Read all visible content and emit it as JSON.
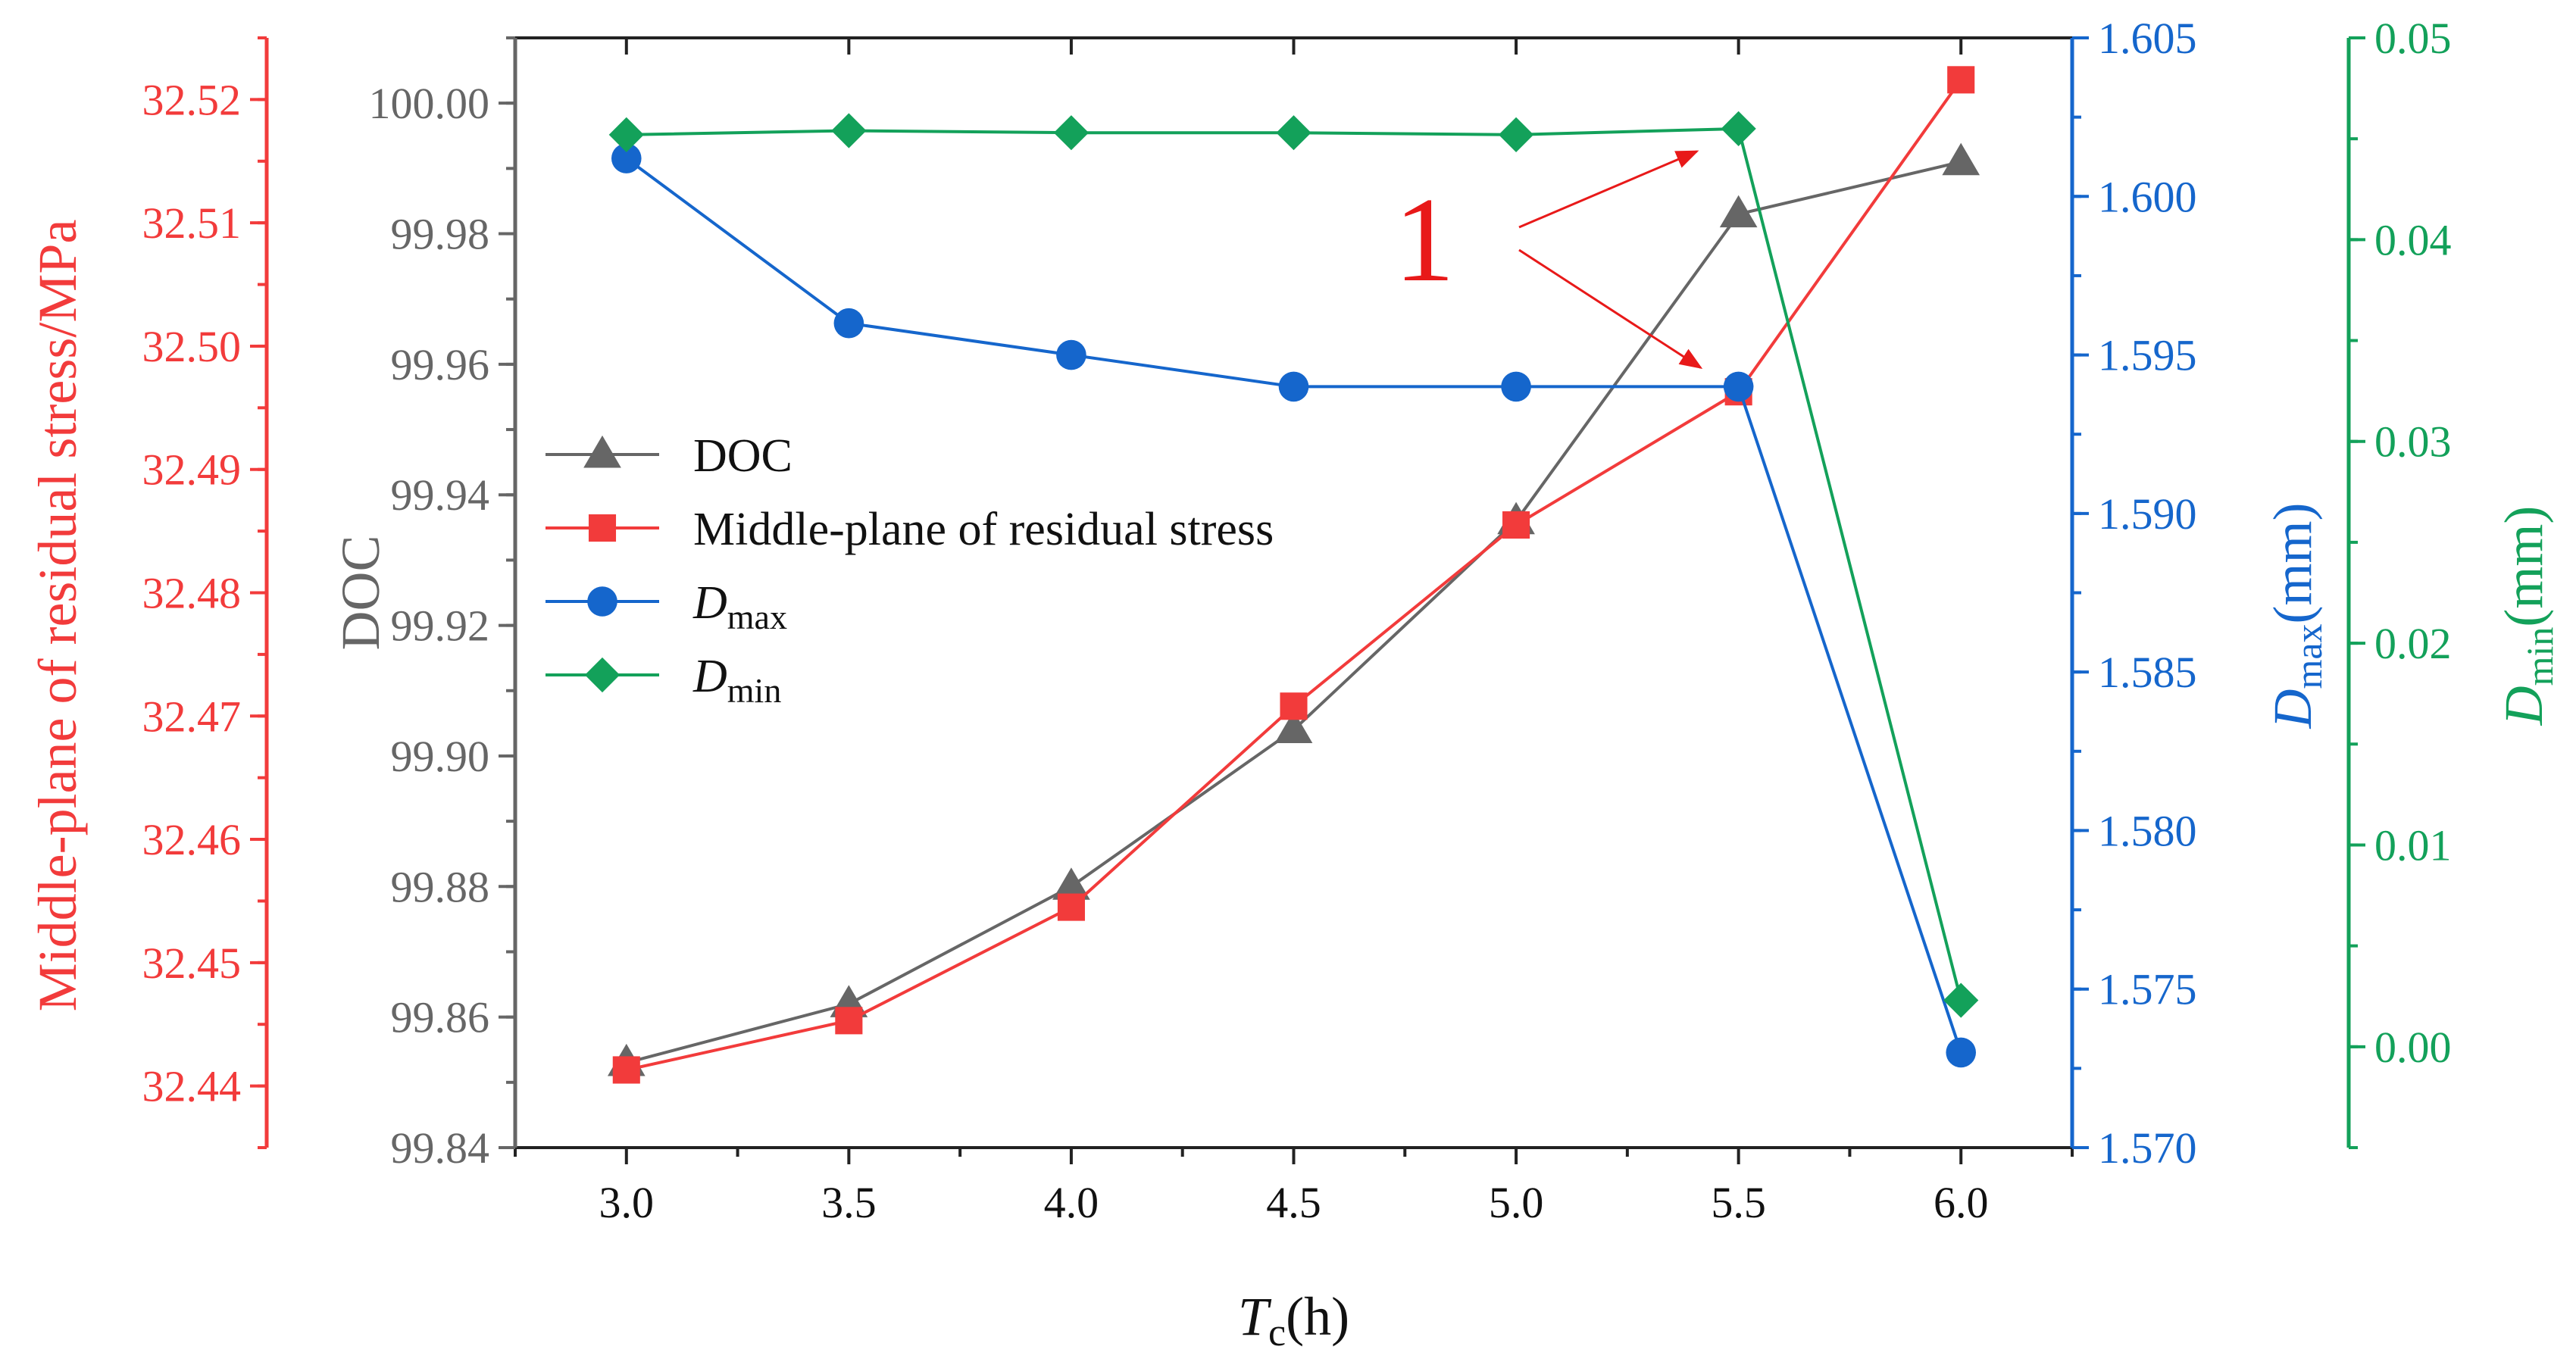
{
  "chart_data": {
    "type": "line",
    "x": [
      3.0,
      3.5,
      4.0,
      4.5,
      5.0,
      5.5,
      6.0
    ],
    "x_ticks": [
      "3.0",
      "3.5",
      "4.0",
      "4.5",
      "5.0",
      "5.5",
      "6.0"
    ],
    "xlim": [
      2.75,
      6.25
    ],
    "xlabel": {
      "main": "T",
      "sub": "c",
      "unit": "(h)"
    },
    "annotation": "1",
    "axes": {
      "red": {
        "label": "Middle-plane of residual stress/MPa",
        "color": "#f23b3b",
        "ylim": [
          32.435,
          32.525
        ],
        "ticks": [
          "32.44",
          "32.45",
          "32.46",
          "32.47",
          "32.48",
          "32.49",
          "32.50",
          "32.51",
          "32.52"
        ]
      },
      "gray": {
        "label": "DOC",
        "color": "#666666",
        "ylim": [
          99.84,
          100.01
        ],
        "ticks": [
          "99.84",
          "99.86",
          "99.88",
          "99.90",
          "99.92",
          "99.94",
          "99.96",
          "99.98",
          "100.00"
        ]
      },
      "blue": {
        "label": {
          "main": "D",
          "sub": "max",
          "unit": "(mm)"
        },
        "color": "#1566cc",
        "ylim": [
          1.57,
          1.605
        ],
        "ticks": [
          "1.570",
          "1.575",
          "1.580",
          "1.585",
          "1.590",
          "1.595",
          "1.600",
          "1.605"
        ]
      },
      "green": {
        "label": {
          "main": "D",
          "sub": "min",
          "unit": "(mm)"
        },
        "color": "#13a15a",
        "ylim": [
          -0.005,
          0.05
        ],
        "ticks": [
          "0.00",
          "0.01",
          "0.02",
          "0.03",
          "0.04",
          "0.05"
        ]
      }
    },
    "series": [
      {
        "name": "DOC",
        "axis": "gray",
        "marker": "triangle",
        "color": "#666666",
        "values": [
          99.853,
          99.862,
          99.88,
          99.904,
          99.936,
          99.983,
          99.991
        ]
      },
      {
        "name": "Middle-plane of residual stress",
        "axis": "red",
        "marker": "square",
        "color": "#f23b3b",
        "values": [
          32.4413,
          32.4453,
          32.4545,
          32.4708,
          32.4855,
          32.4963,
          32.5216
        ]
      },
      {
        "name": "Dmax",
        "axis": "blue",
        "marker": "circle",
        "color": "#1566cc",
        "values": [
          1.6012,
          1.596,
          1.595,
          1.594,
          1.594,
          1.594,
          1.573
        ]
      },
      {
        "name": "Dmin",
        "axis": "green",
        "marker": "diamond",
        "color": "#13a15a",
        "values": [
          0.0452,
          0.0454,
          0.0453,
          0.0453,
          0.0452,
          0.0455,
          0.0023
        ]
      }
    ],
    "legend": [
      {
        "series": 0,
        "text": "DOC"
      },
      {
        "series": 1,
        "text": "Middle-plane of residual stress"
      },
      {
        "series": 2,
        "text": "D",
        "sub": "max"
      },
      {
        "series": 3,
        "text": "D",
        "sub": "min"
      }
    ]
  }
}
